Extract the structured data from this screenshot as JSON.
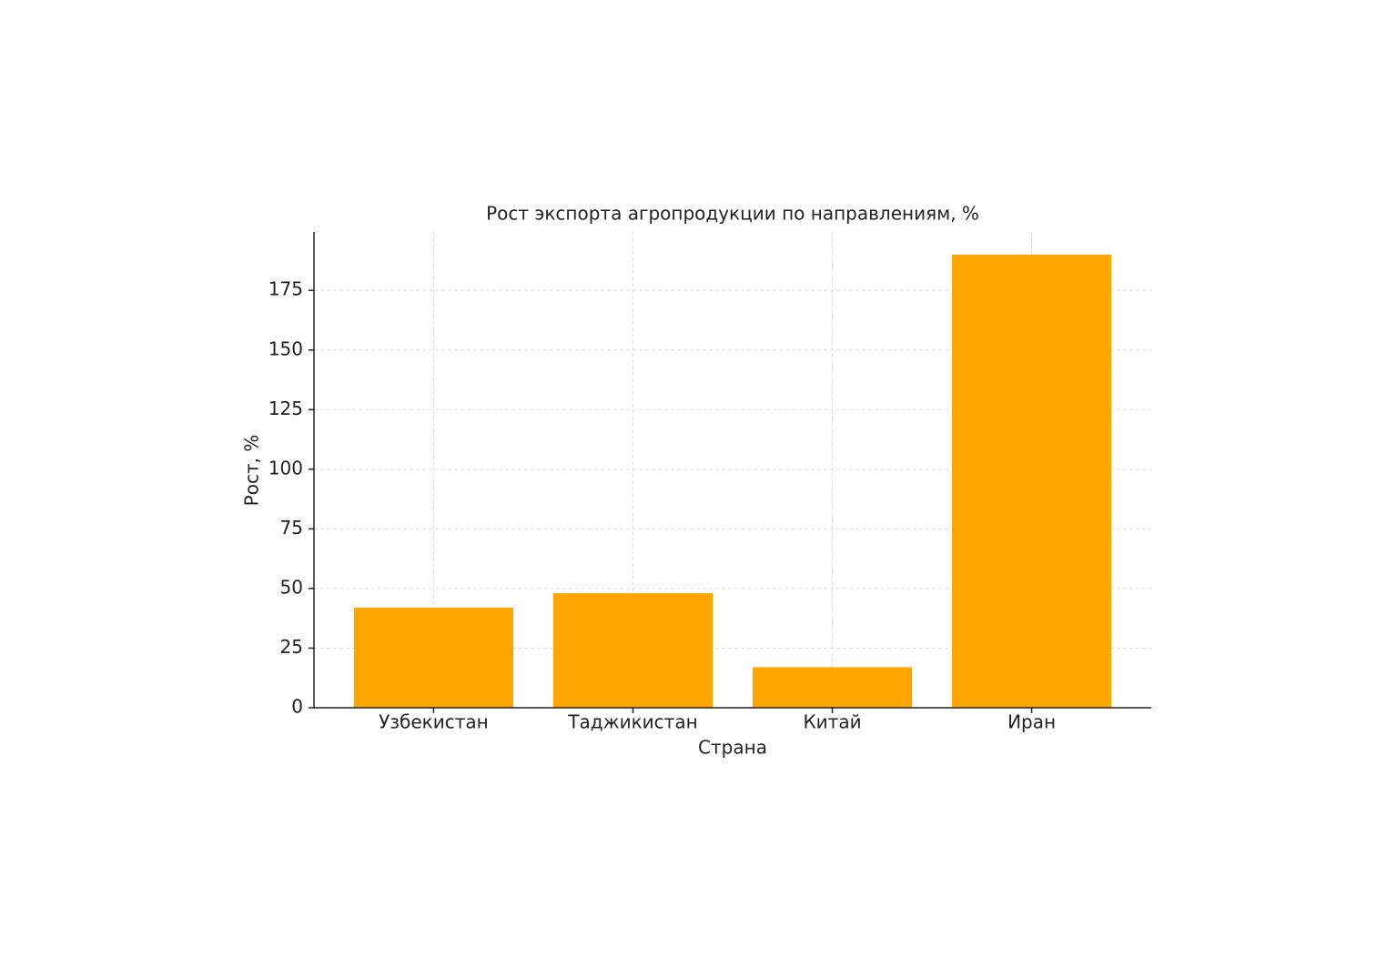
{
  "chart_data": {
    "type": "bar",
    "title": "Рост экспорта агропродукции по направлениям, %",
    "x_label": "Страна",
    "y_label": "Рост, %",
    "categories": [
      "Узбекистан",
      "Таджикистан",
      "Китай",
      "Иран"
    ],
    "values": [
      42,
      48,
      17,
      190
    ],
    "color": "#ffa500",
    "ylim": [
      0,
      199.5
    ],
    "yticks": [
      0,
      25,
      50,
      75,
      100,
      125,
      150,
      175
    ],
    "grid": true
  }
}
